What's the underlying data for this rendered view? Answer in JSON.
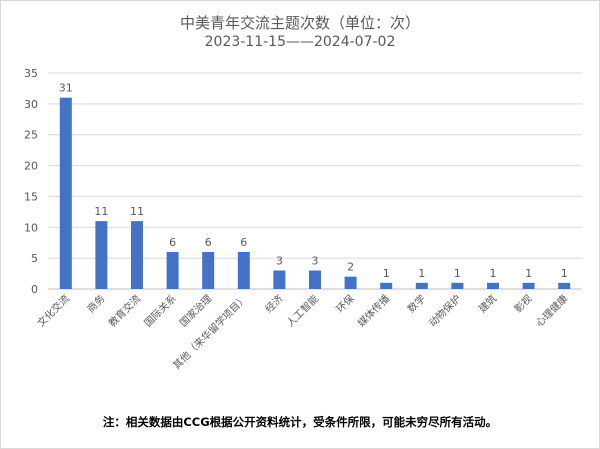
{
  "chart_data": {
    "type": "bar",
    "title": "中美青年交流主题次数（单位：次）",
    "subtitle": "2023-11-15——2024-07-02",
    "categories": [
      "文化交流",
      "商务",
      "教育交流",
      "国际关系",
      "国家治理",
      "其他（来华留学项目）",
      "经济",
      "人工智能",
      "环保",
      "媒体传播",
      "数学",
      "动物保护",
      "建筑",
      "影视",
      "心理健康"
    ],
    "values": [
      31,
      11,
      11,
      6,
      6,
      6,
      3,
      3,
      2,
      1,
      1,
      1,
      1,
      1,
      1
    ],
    "ylim": [
      0,
      35
    ],
    "yticks": [
      0,
      5,
      10,
      15,
      20,
      25,
      30,
      35
    ],
    "grid": true,
    "bar_color": "#4472C4",
    "gridline_color": "#d9d9d9"
  },
  "footnote": "注：相关数据由CCG根据公开资料统计，受条件所限，可能未穷尽所有活动。"
}
